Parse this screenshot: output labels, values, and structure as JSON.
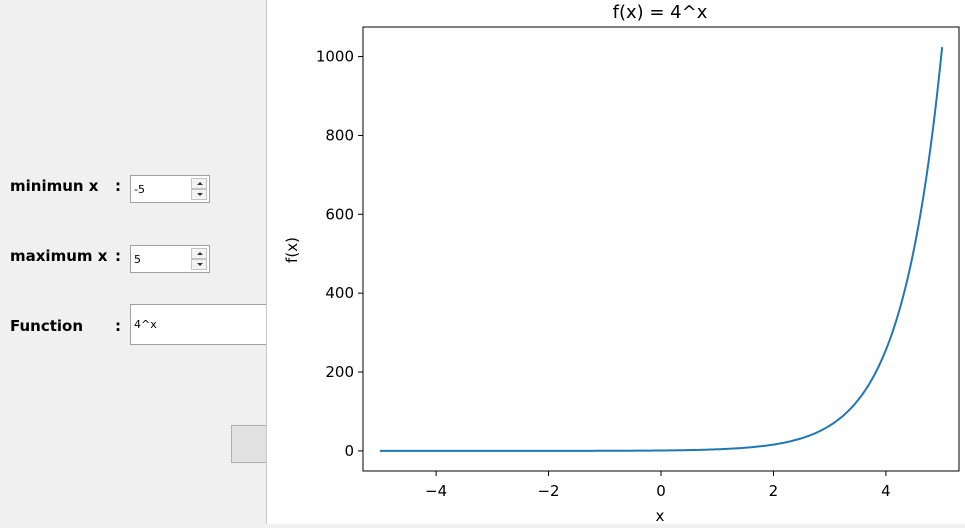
{
  "form": {
    "min_label": "minimun x",
    "max_label": "maximum x",
    "function_label": "Function",
    "colon": ":",
    "min_value": "-5",
    "max_value": "5",
    "function_value": "4^x"
  },
  "chart_data": {
    "type": "line",
    "title": "f(x) = 4^x",
    "xlabel": "x",
    "ylabel": "f(x)",
    "function": "4^x",
    "xlim": [
      -5.3,
      5.3
    ],
    "ylim": [
      -51,
      1075
    ],
    "xticks": [
      -4,
      -2,
      0,
      2,
      4
    ],
    "xtick_labels": [
      "−4",
      "−2",
      "0",
      "2",
      "4"
    ],
    "yticks": [
      0,
      200,
      400,
      600,
      800,
      1000
    ],
    "ytick_labels": [
      "0",
      "200",
      "400",
      "600",
      "800",
      "1000"
    ],
    "series": [
      {
        "color": "#1f77b4",
        "x": [
          -5,
          -4,
          -3,
          -2,
          -1,
          0,
          0.5,
          1,
          1.5,
          2,
          2.5,
          3,
          3.25,
          3.5,
          3.75,
          4,
          4.25,
          4.5,
          4.75,
          5
        ],
        "y": [
          0.001,
          0.004,
          0.016,
          0.063,
          0.25,
          1,
          2,
          4,
          8,
          16,
          32,
          64,
          90.5,
          128,
          181,
          256,
          362,
          512,
          724,
          1024
        ]
      }
    ],
    "grid": false,
    "legend": "none"
  }
}
